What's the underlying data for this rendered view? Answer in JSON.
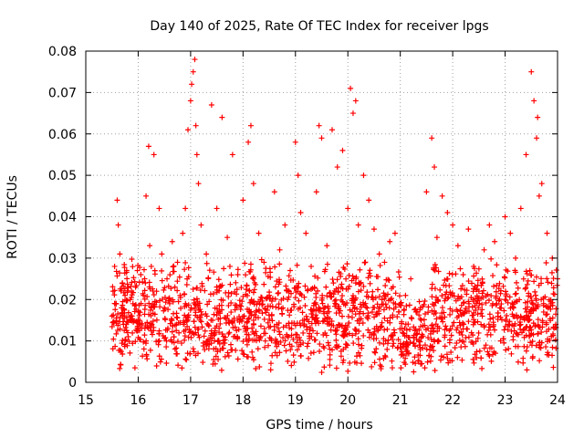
{
  "chart_data": {
    "type": "scatter",
    "title": "Day 140 of 2025, Rate Of TEC Index for receiver lpgs",
    "xlabel": "GPS time / hours",
    "ylabel": "ROTI / TECUs",
    "xlim": [
      15,
      24
    ],
    "ylim": [
      0,
      0.08
    ],
    "xticks": [
      "15",
      "16",
      "17",
      "18",
      "19",
      "20",
      "21",
      "22",
      "23",
      "24"
    ],
    "yticks": [
      "0",
      "0.01",
      "0.02",
      "0.03",
      "0.04",
      "0.05",
      "0.06",
      "0.07",
      "0.08"
    ],
    "grid": true,
    "marker": "+",
    "series_color": "#ff0000",
    "series": [
      {
        "name": "ROTI",
        "x": [
          15.5,
          15.52,
          15.55,
          15.58,
          15.6,
          15.62,
          15.65,
          15.68,
          15.7,
          15.72,
          15.75,
          15.78,
          15.8,
          15.85,
          15.9,
          15.95,
          16.0,
          16.05,
          16.1,
          16.15,
          16.2,
          16.22,
          16.25,
          16.3,
          16.35,
          16.4,
          16.45,
          16.5,
          16.55,
          16.6,
          16.65,
          16.7,
          16.75,
          16.8,
          16.85,
          16.9,
          16.95,
          17.0,
          17.02,
          17.05,
          17.08,
          17.1,
          17.12,
          17.15,
          17.2,
          17.3,
          17.4,
          17.5,
          17.6,
          17.7,
          17.75,
          17.8,
          17.9,
          18.0,
          18.1,
          18.15,
          18.2,
          18.3,
          18.4,
          18.5,
          18.6,
          18.7,
          18.8,
          18.9,
          19.0,
          19.05,
          19.1,
          19.2,
          19.3,
          19.4,
          19.45,
          19.5,
          19.6,
          19.7,
          19.8,
          19.9,
          20.0,
          20.05,
          20.1,
          20.15,
          20.2,
          20.3,
          20.4,
          20.5,
          20.6,
          20.7,
          20.8,
          20.9,
          21.0,
          21.1,
          21.2,
          21.3,
          21.4,
          21.5,
          21.6,
          21.65,
          21.7,
          21.8,
          21.9,
          22.0,
          22.1,
          22.2,
          22.3,
          22.4,
          22.5,
          22.6,
          22.7,
          22.8,
          22.9,
          23.0,
          23.1,
          23.2,
          23.3,
          23.4,
          23.5,
          23.55,
          23.6,
          23.62,
          23.65,
          23.7,
          23.8,
          23.9,
          24.0
        ],
        "y": [
          0.016,
          0.022,
          0.028,
          0.019,
          0.044,
          0.038,
          0.031,
          0.018,
          0.024,
          0.014,
          0.021,
          0.027,
          0.012,
          0.015,
          0.019,
          0.023,
          0.017,
          0.026,
          0.021,
          0.045,
          0.057,
          0.033,
          0.028,
          0.055,
          0.022,
          0.042,
          0.031,
          0.018,
          0.025,
          0.019,
          0.034,
          0.023,
          0.029,
          0.021,
          0.036,
          0.042,
          0.061,
          0.068,
          0.072,
          0.075,
          0.078,
          0.062,
          0.055,
          0.048,
          0.038,
          0.031,
          0.067,
          0.042,
          0.064,
          0.035,
          0.028,
          0.055,
          0.026,
          0.044,
          0.058,
          0.062,
          0.048,
          0.036,
          0.029,
          0.021,
          0.046,
          0.032,
          0.038,
          0.027,
          0.058,
          0.05,
          0.041,
          0.036,
          0.028,
          0.046,
          0.062,
          0.059,
          0.033,
          0.061,
          0.052,
          0.056,
          0.042,
          0.071,
          0.065,
          0.068,
          0.038,
          0.05,
          0.044,
          0.037,
          0.031,
          0.029,
          0.034,
          0.036,
          0.019,
          0.021,
          0.025,
          0.017,
          0.015,
          0.046,
          0.059,
          0.052,
          0.035,
          0.045,
          0.041,
          0.038,
          0.033,
          0.026,
          0.037,
          0.028,
          0.022,
          0.032,
          0.038,
          0.034,
          0.018,
          0.04,
          0.036,
          0.03,
          0.042,
          0.055,
          0.075,
          0.068,
          0.059,
          0.064,
          0.045,
          0.048,
          0.036,
          0.03,
          0.025
        ]
      },
      {
        "name": "ROTI background",
        "x_range": [
          15.5,
          24
        ],
        "y_range": [
          0.002,
          0.03
        ],
        "count": 1800
      }
    ]
  }
}
